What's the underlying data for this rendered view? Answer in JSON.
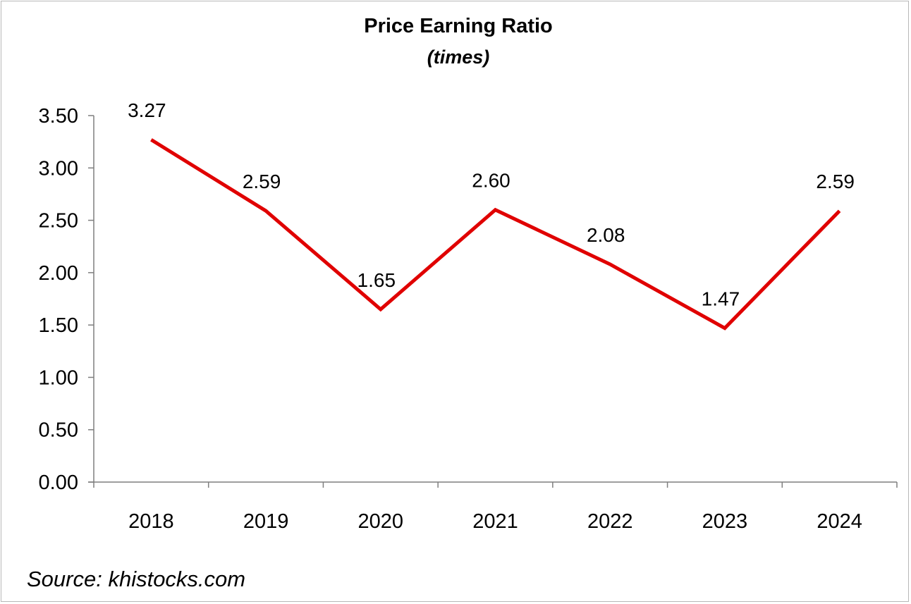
{
  "chart_data": {
    "type": "line",
    "title": "Price Earning Ratio",
    "subtitle": "(times)",
    "categories": [
      "2018",
      "2019",
      "2020",
      "2021",
      "2022",
      "2023",
      "2024"
    ],
    "series": [
      {
        "values": [
          3.27,
          2.59,
          1.65,
          2.6,
          2.08,
          1.47,
          2.59
        ],
        "labels": [
          "3.27",
          "2.59",
          "1.65",
          "2.60",
          "2.08",
          "1.47",
          "2.59"
        ],
        "color": "#e00000"
      }
    ],
    "y_ticks": [
      "0.00",
      "0.50",
      "1.00",
      "1.50",
      "2.00",
      "2.50",
      "3.00",
      "3.50"
    ],
    "ylim": [
      0,
      3.5
    ],
    "grid": false,
    "legend": "none"
  },
  "source": "Source: khistocks.com",
  "colors": {
    "line": "#e00000",
    "axis": "#7f7f7f"
  }
}
